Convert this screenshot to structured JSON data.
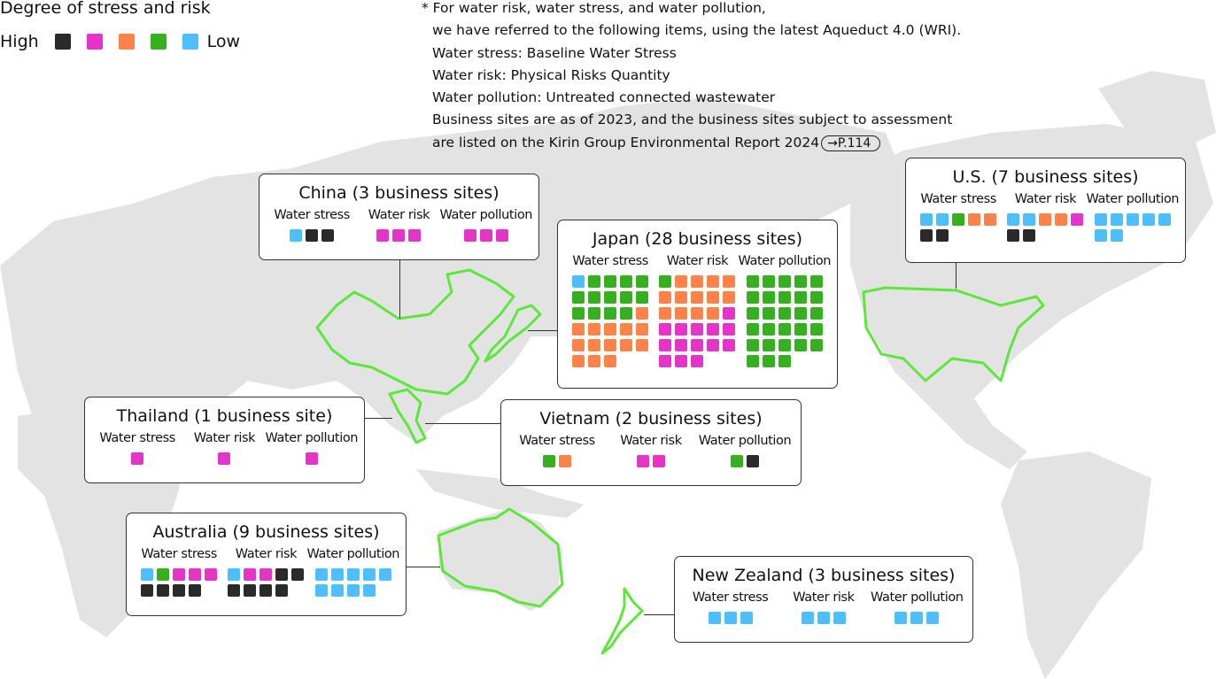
{
  "colors": {
    "K": "#2a2a2a",
    "M": "#e535c8",
    "O": "#ff8249",
    "G": "#35b01f",
    "B": "#4dbfff",
    "land": "#e3e3e3",
    "outline": "#5be83a"
  },
  "legend": {
    "title": "Degree of stress and risk",
    "high": "High",
    "low": "Low",
    "scale": [
      "K",
      "M",
      "O",
      "G",
      "B"
    ]
  },
  "notes": {
    "lines": [
      "* For water risk, water stress, and water pollution,",
      "we have referred to the following items, using the latest Aqueduct 4.0 (WRI).",
      "Water stress: Baseline Water Stress",
      "Water risk: Physical Risks Quantity",
      "Water pollution: Untreated connected wastewater",
      "Business sites are as of 2023, and the business sites subject to assessment",
      "are listed on the Kirin Group Environmental Report 2024"
    ],
    "page_ref": "→P.114"
  },
  "column_labels": [
    "Water stress",
    "Water risk",
    "Water pollution"
  ],
  "regions": [
    {
      "id": "china",
      "title": "China (3 business sites)",
      "stress": "BKK",
      "risk": "MMM",
      "pollution": "MMM"
    },
    {
      "id": "japan",
      "title": "Japan (28 business sites)",
      "stress": "BGGGGGGGGGGGGGOOOOOOOOOOOOOO",
      "risk": "GOOOOOOOOOOOOOMMMMMMMMMMMMMM",
      "pollution": "GGGGGGGGGGGGGGGGGGGGGGGGGGGG"
    },
    {
      "id": "us",
      "title": "U.S. (7 business sites)",
      "stress": "BBGOOKK",
      "risk": "BBOOMKK",
      "pollution": "BBBBBBB"
    },
    {
      "id": "thailand",
      "title": "Thailand (1 business site)",
      "stress": "M",
      "risk": "M",
      "pollution": "M"
    },
    {
      "id": "vietnam",
      "title": "Vietnam (2 business sites)",
      "stress": "GO",
      "risk": "MM",
      "pollution": "GK"
    },
    {
      "id": "australia",
      "title": "Australia (9 business sites)",
      "stress": "BGMMMKKKK",
      "risk": "BMMKKKKKK",
      "pollution": "BBBBBBBBB"
    },
    {
      "id": "new-zealand",
      "title": "New Zealand (3 business sites)",
      "stress": "BBB",
      "risk": "BBB",
      "pollution": "BBB"
    }
  ]
}
